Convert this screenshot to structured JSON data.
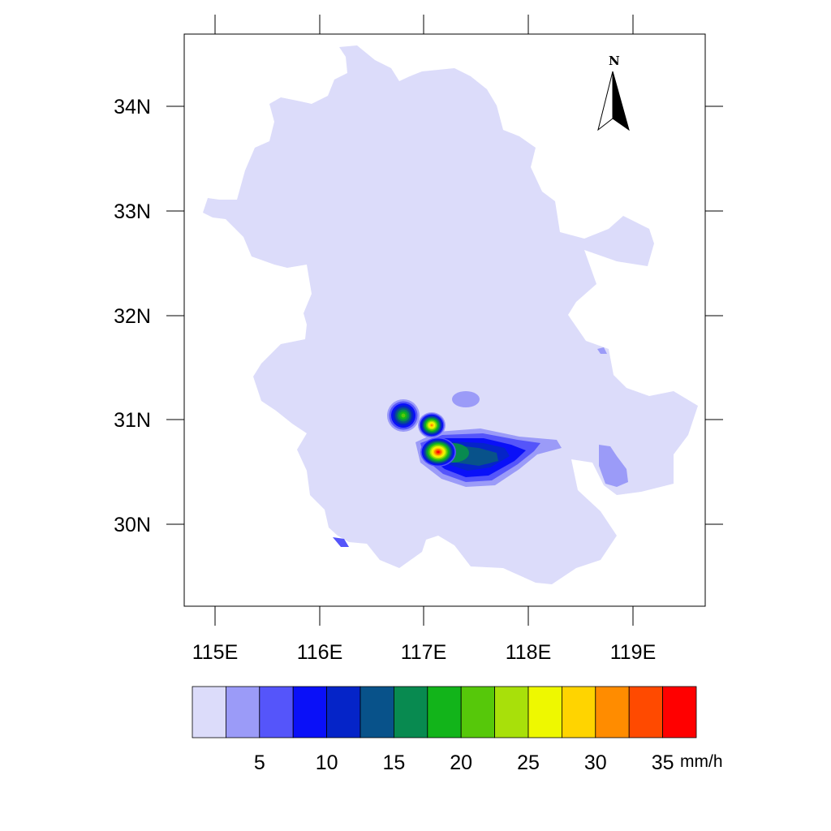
{
  "map": {
    "x_ticks": [
      "115E",
      "116E",
      "117E",
      "118E",
      "119E"
    ],
    "y_ticks": [
      "34N",
      "33N",
      "32N",
      "31N",
      "30N"
    ],
    "north_label": "N",
    "region_fill": "#dcdcfa",
    "zones": [
      {
        "name": "weak-patch-northeast-border",
        "level": 1
      },
      {
        "name": "weak-patch-east",
        "level": 1
      },
      {
        "name": "patch-center-north",
        "level": 1
      },
      {
        "name": "patch-southwest-edge",
        "level": 2
      },
      {
        "name": "main-rain-band",
        "levels": [
          1,
          2,
          3,
          4,
          5,
          6,
          7
        ]
      },
      {
        "name": "cell-west",
        "peak_level": 9
      },
      {
        "name": "cell-middle",
        "peak_level": 13
      },
      {
        "name": "cell-main",
        "peak_level": 15
      }
    ]
  },
  "colorbar": {
    "colors": [
      "#dcdcfa",
      "#9b9bf8",
      "#5555fa",
      "#0a10f8",
      "#0524c8",
      "#08528a",
      "#088a50",
      "#12b41a",
      "#56c80a",
      "#a8e00a",
      "#eef800",
      "#ffd400",
      "#ff8c00",
      "#ff4a00",
      "#ff0000"
    ],
    "labels": [
      "5",
      "10",
      "15",
      "20",
      "25",
      "30",
      "35"
    ],
    "unit": "mm/h"
  }
}
